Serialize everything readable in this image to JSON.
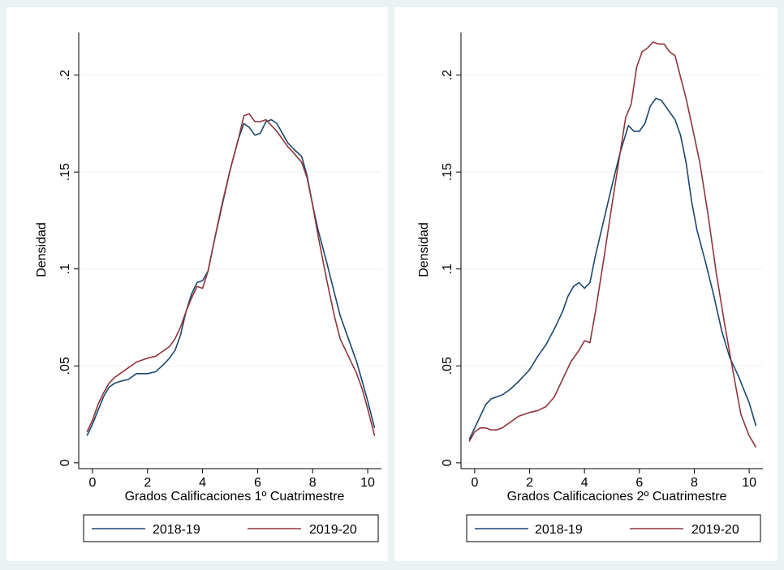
{
  "figure": {
    "background": "#eaf2f3",
    "plot_background": "#ffffff",
    "grid_color": "#eaf2f3"
  },
  "chart_data": [
    {
      "type": "line",
      "xlabel": "Grados Calificaciones 1º Cuatrimestre",
      "ylabel": "Densidad",
      "xlim": [
        -0.5,
        10.5
      ],
      "ylim": [
        -0.003,
        0.222
      ],
      "x_ticks": [
        0,
        2,
        4,
        6,
        8,
        10
      ],
      "y_ticks": [
        0,
        0.05,
        0.1,
        0.15,
        0.2
      ],
      "y_tick_labels": [
        "0",
        ".05",
        ".1",
        ".15",
        ".2"
      ],
      "grid": "horizontal",
      "legend_position": "bottom",
      "series": [
        {
          "name": "2018-19",
          "color": "#1a476f",
          "x": [
            -0.2,
            0,
            0.2,
            0.4,
            0.6,
            0.8,
            1.0,
            1.3,
            1.6,
            2.0,
            2.3,
            2.6,
            2.8,
            3.0,
            3.2,
            3.4,
            3.6,
            3.8,
            4.0,
            4.2,
            4.4,
            4.7,
            5.0,
            5.3,
            5.5,
            5.7,
            5.9,
            6.1,
            6.3,
            6.5,
            6.7,
            6.9,
            7.1,
            7.3,
            7.6,
            7.8,
            8.0,
            8.2,
            8.5,
            8.8,
            9.0,
            9.3,
            9.6,
            9.8,
            10.0,
            10.25
          ],
          "y": [
            0.014,
            0.02,
            0.027,
            0.034,
            0.039,
            0.041,
            0.042,
            0.043,
            0.046,
            0.046,
            0.047,
            0.051,
            0.054,
            0.058,
            0.066,
            0.078,
            0.087,
            0.093,
            0.094,
            0.099,
            0.113,
            0.132,
            0.151,
            0.167,
            0.175,
            0.173,
            0.169,
            0.17,
            0.176,
            0.177,
            0.175,
            0.17,
            0.165,
            0.162,
            0.158,
            0.148,
            0.133,
            0.12,
            0.104,
            0.087,
            0.076,
            0.064,
            0.052,
            0.042,
            0.032,
            0.018
          ]
        },
        {
          "name": "2019-20",
          "color": "#90353b",
          "x": [
            -0.2,
            0,
            0.2,
            0.4,
            0.6,
            0.8,
            1.0,
            1.3,
            1.6,
            2.0,
            2.3,
            2.6,
            2.8,
            3.0,
            3.2,
            3.4,
            3.6,
            3.8,
            4.0,
            4.2,
            4.4,
            4.7,
            5.0,
            5.3,
            5.5,
            5.7,
            5.9,
            6.1,
            6.3,
            6.5,
            6.7,
            6.9,
            7.1,
            7.3,
            7.6,
            7.8,
            8.0,
            8.2,
            8.5,
            8.8,
            9.0,
            9.3,
            9.6,
            9.8,
            10.0,
            10.25
          ],
          "y": [
            0.016,
            0.022,
            0.03,
            0.036,
            0.041,
            0.044,
            0.046,
            0.049,
            0.052,
            0.054,
            0.055,
            0.058,
            0.06,
            0.064,
            0.07,
            0.078,
            0.085,
            0.091,
            0.09,
            0.099,
            0.113,
            0.133,
            0.151,
            0.167,
            0.179,
            0.18,
            0.176,
            0.176,
            0.177,
            0.174,
            0.171,
            0.167,
            0.163,
            0.16,
            0.155,
            0.147,
            0.133,
            0.117,
            0.095,
            0.075,
            0.064,
            0.055,
            0.046,
            0.038,
            0.028,
            0.014
          ]
        }
      ]
    },
    {
      "type": "line",
      "xlabel": "Grados Calificaciones 2º Cuatrimestre",
      "ylabel": "Densidad",
      "xlim": [
        -0.5,
        10.5
      ],
      "ylim": [
        -0.003,
        0.222
      ],
      "x_ticks": [
        0,
        2,
        4,
        6,
        8,
        10
      ],
      "y_ticks": [
        0,
        0.05,
        0.1,
        0.15,
        0.2
      ],
      "y_tick_labels": [
        "0",
        ".05",
        ".1",
        ".15",
        ".2"
      ],
      "grid": "horizontal",
      "legend_position": "bottom",
      "series": [
        {
          "name": "2018-19",
          "color": "#1a476f",
          "x": [
            -0.2,
            0,
            0.2,
            0.4,
            0.6,
            1.0,
            1.3,
            1.6,
            2.0,
            2.3,
            2.6,
            2.9,
            3.2,
            3.4,
            3.6,
            3.8,
            4.0,
            4.2,
            4.4,
            4.7,
            5.0,
            5.3,
            5.6,
            5.8,
            6.0,
            6.2,
            6.4,
            6.6,
            6.8,
            7.0,
            7.3,
            7.5,
            7.7,
            7.9,
            8.1,
            8.4,
            8.7,
            9.0,
            9.3,
            9.6,
            9.8,
            10.0,
            10.25
          ],
          "y": [
            0.012,
            0.018,
            0.024,
            0.03,
            0.033,
            0.035,
            0.038,
            0.042,
            0.048,
            0.055,
            0.061,
            0.069,
            0.078,
            0.086,
            0.091,
            0.093,
            0.09,
            0.093,
            0.107,
            0.125,
            0.143,
            0.16,
            0.174,
            0.171,
            0.171,
            0.175,
            0.184,
            0.188,
            0.187,
            0.183,
            0.177,
            0.169,
            0.155,
            0.135,
            0.12,
            0.104,
            0.087,
            0.068,
            0.054,
            0.045,
            0.038,
            0.031,
            0.019
          ]
        },
        {
          "name": "2019-20",
          "color": "#90353b",
          "x": [
            -0.2,
            0,
            0.2,
            0.4,
            0.6,
            0.8,
            1.0,
            1.3,
            1.6,
            2.0,
            2.3,
            2.6,
            2.9,
            3.2,
            3.5,
            3.8,
            4.0,
            4.2,
            4.4,
            4.7,
            5.0,
            5.3,
            5.5,
            5.7,
            5.9,
            6.1,
            6.3,
            6.5,
            6.7,
            6.9,
            7.1,
            7.3,
            7.5,
            7.7,
            7.9,
            8.2,
            8.5,
            8.8,
            9.1,
            9.4,
            9.7,
            10.0,
            10.25
          ],
          "y": [
            0.011,
            0.016,
            0.018,
            0.018,
            0.017,
            0.017,
            0.018,
            0.021,
            0.024,
            0.026,
            0.027,
            0.029,
            0.034,
            0.043,
            0.052,
            0.058,
            0.063,
            0.062,
            0.078,
            0.105,
            0.133,
            0.16,
            0.178,
            0.185,
            0.204,
            0.212,
            0.214,
            0.217,
            0.216,
            0.216,
            0.212,
            0.21,
            0.199,
            0.188,
            0.175,
            0.155,
            0.128,
            0.098,
            0.072,
            0.048,
            0.025,
            0.014,
            0.008
          ]
        }
      ]
    }
  ]
}
